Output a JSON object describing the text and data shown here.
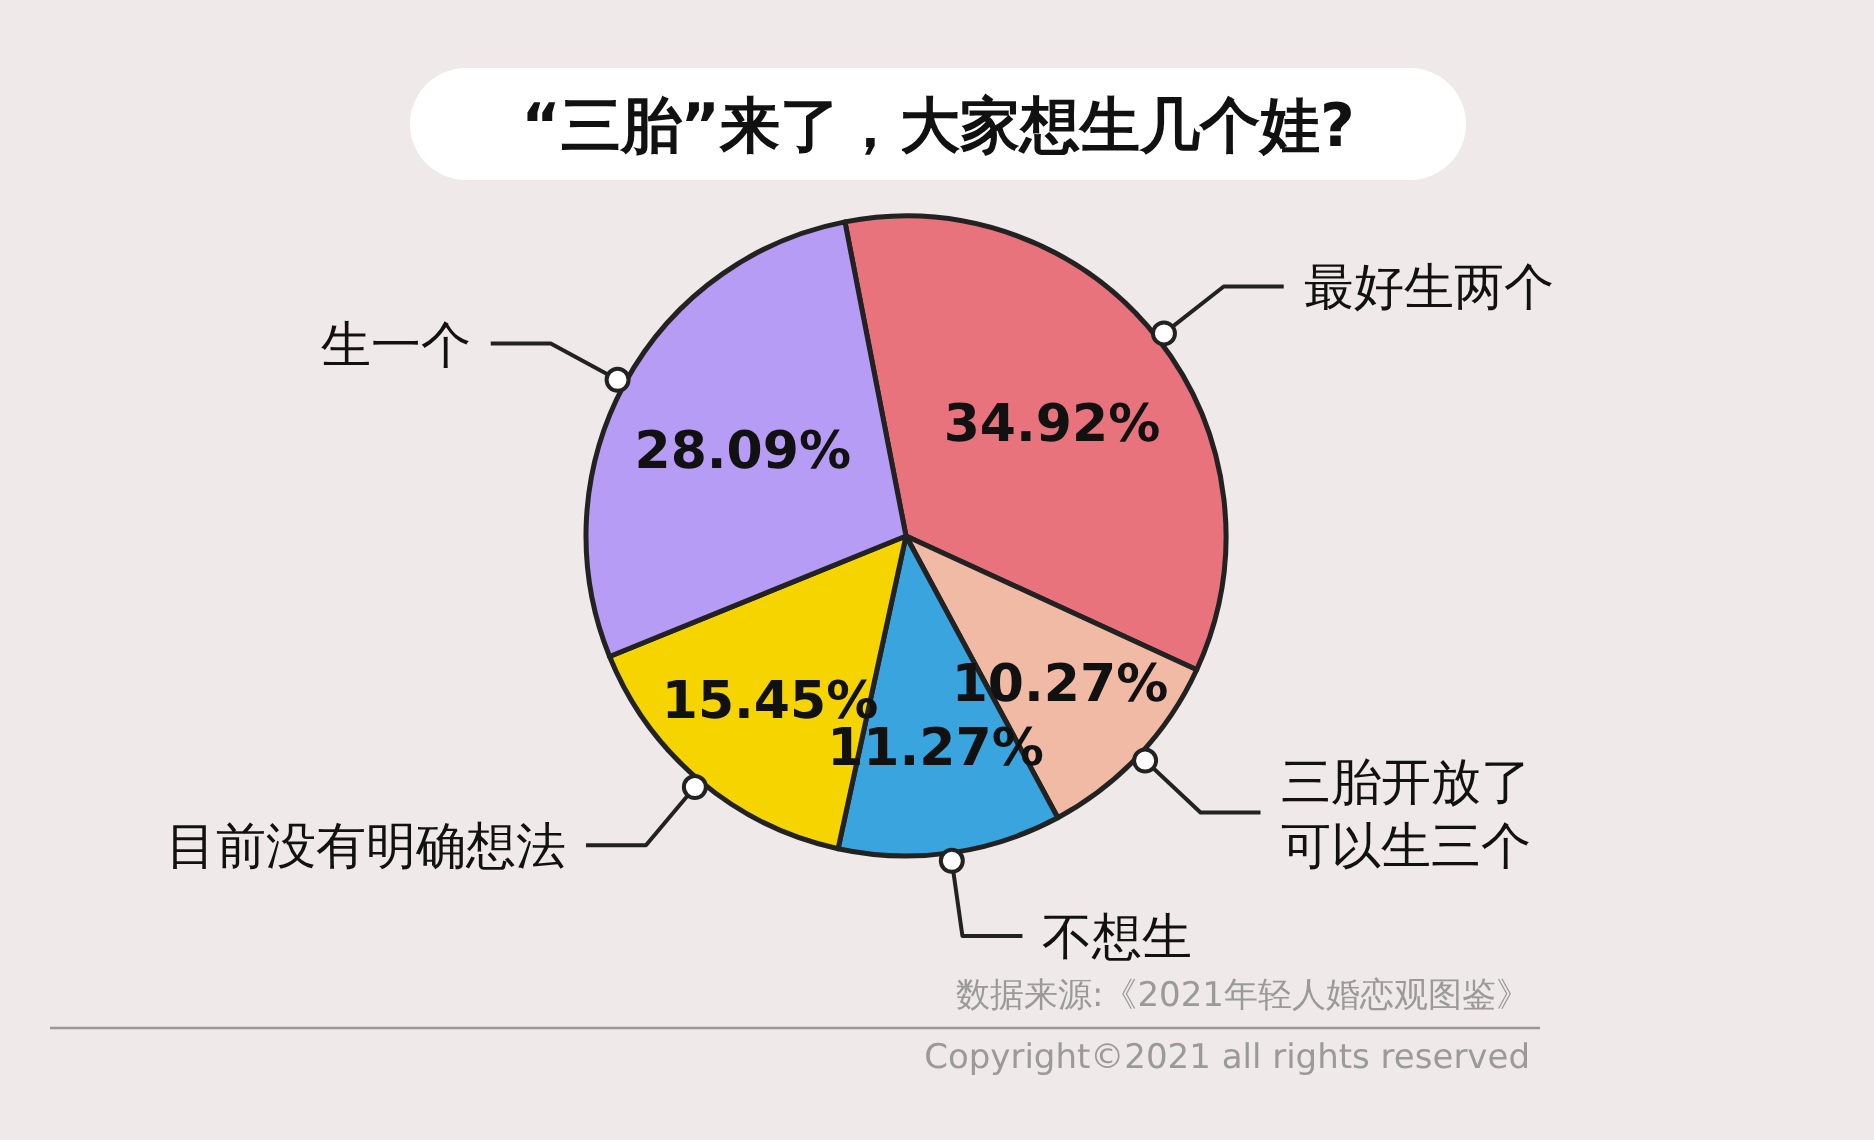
{
  "chart_data": {
    "type": "pie",
    "title": "“三胎”来了，大家想生几个娃?",
    "categories": [
      "最好生两个",
      "三胎开放了可以生三个",
      "不想生",
      "目前没有明确想法",
      "生一个"
    ],
    "values": [
      34.92,
      10.27,
      11.27,
      15.45,
      28.09
    ],
    "colors": [
      "#e8737d",
      "#f0baa5",
      "#3aa4de",
      "#f6d400",
      "#b79cf6"
    ],
    "value_labels": [
      "34.92%",
      "10.27%",
      "11.27%",
      "15.45%",
      "28.09%"
    ],
    "annotations": [
      "数据来源:《2021年轻人婚恋观图鉴》",
      "Copyright©2021 all rights reserved"
    ]
  }
}
